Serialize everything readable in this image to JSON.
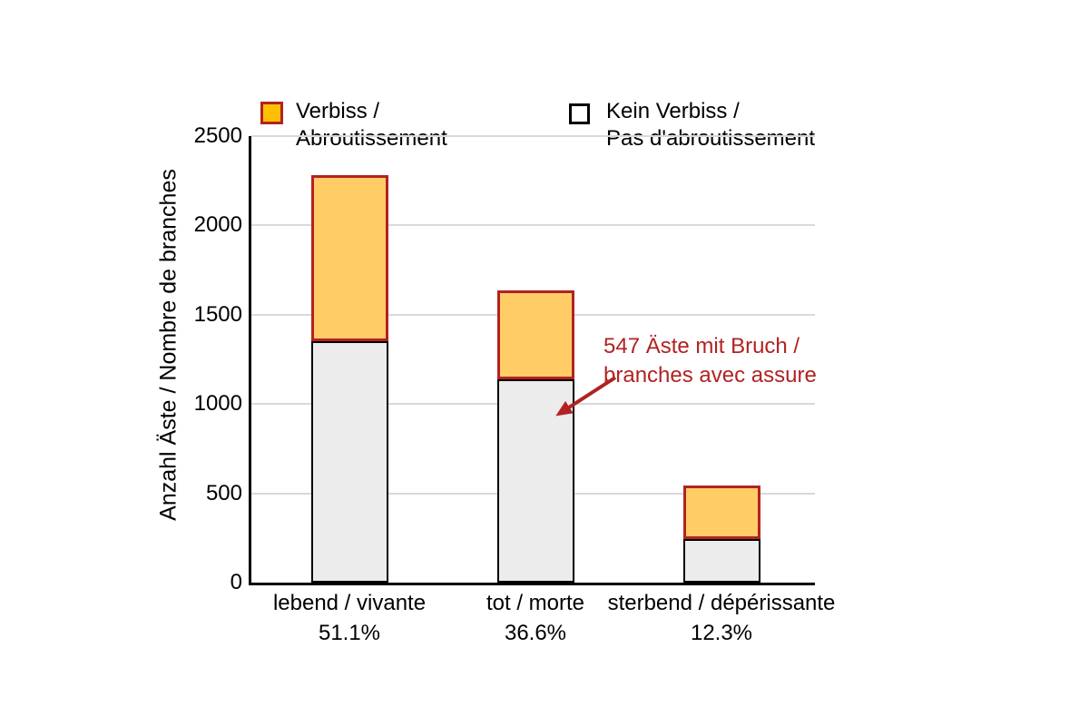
{
  "ylabel": "Anzahl Äste / Nombre de branches",
  "legend": {
    "items": [
      {
        "label_line1": "Verbiss /",
        "label_line2": "Abroutissement",
        "swatch_fill": "#FFC000",
        "swatch_border": "#B22222"
      },
      {
        "label_line1": "Kein Verbiss /",
        "label_line2": "Pas d'abroutissement",
        "swatch_fill": "#FFFFFF",
        "swatch_border": "#000000"
      }
    ]
  },
  "annotation": {
    "line1": "547 Äste mit Bruch /",
    "line2": "branches avec assure",
    "color": "#B22222"
  },
  "chart_data": {
    "type": "bar",
    "stacked": true,
    "categories": [
      "lebend / vivante",
      "tot / morte",
      "sterbend / dépérissante"
    ],
    "category_percent_labels": [
      "51.1%",
      "36.6%",
      "12.3%"
    ],
    "series": [
      {
        "name": "Kein Verbiss / Pas d'abroutissement",
        "values": [
          1350,
          1140,
          245
        ],
        "fill": "#ECECEC",
        "border_color": "#000000"
      },
      {
        "name": "Verbiss / Abroutissement",
        "values": [
          930,
          495,
          300
        ],
        "fill": "#FFCC66",
        "border_color": "#B22222"
      }
    ],
    "totals": [
      2280,
      1635,
      545
    ],
    "ylabel": "Anzahl Äste / Nombre de branches",
    "yticks": [
      0,
      500,
      1000,
      1500,
      2000,
      2500
    ],
    "ylim": [
      0,
      2500
    ],
    "grid": true,
    "gridline_color": "#D9D9D9",
    "legend_position": "top"
  }
}
